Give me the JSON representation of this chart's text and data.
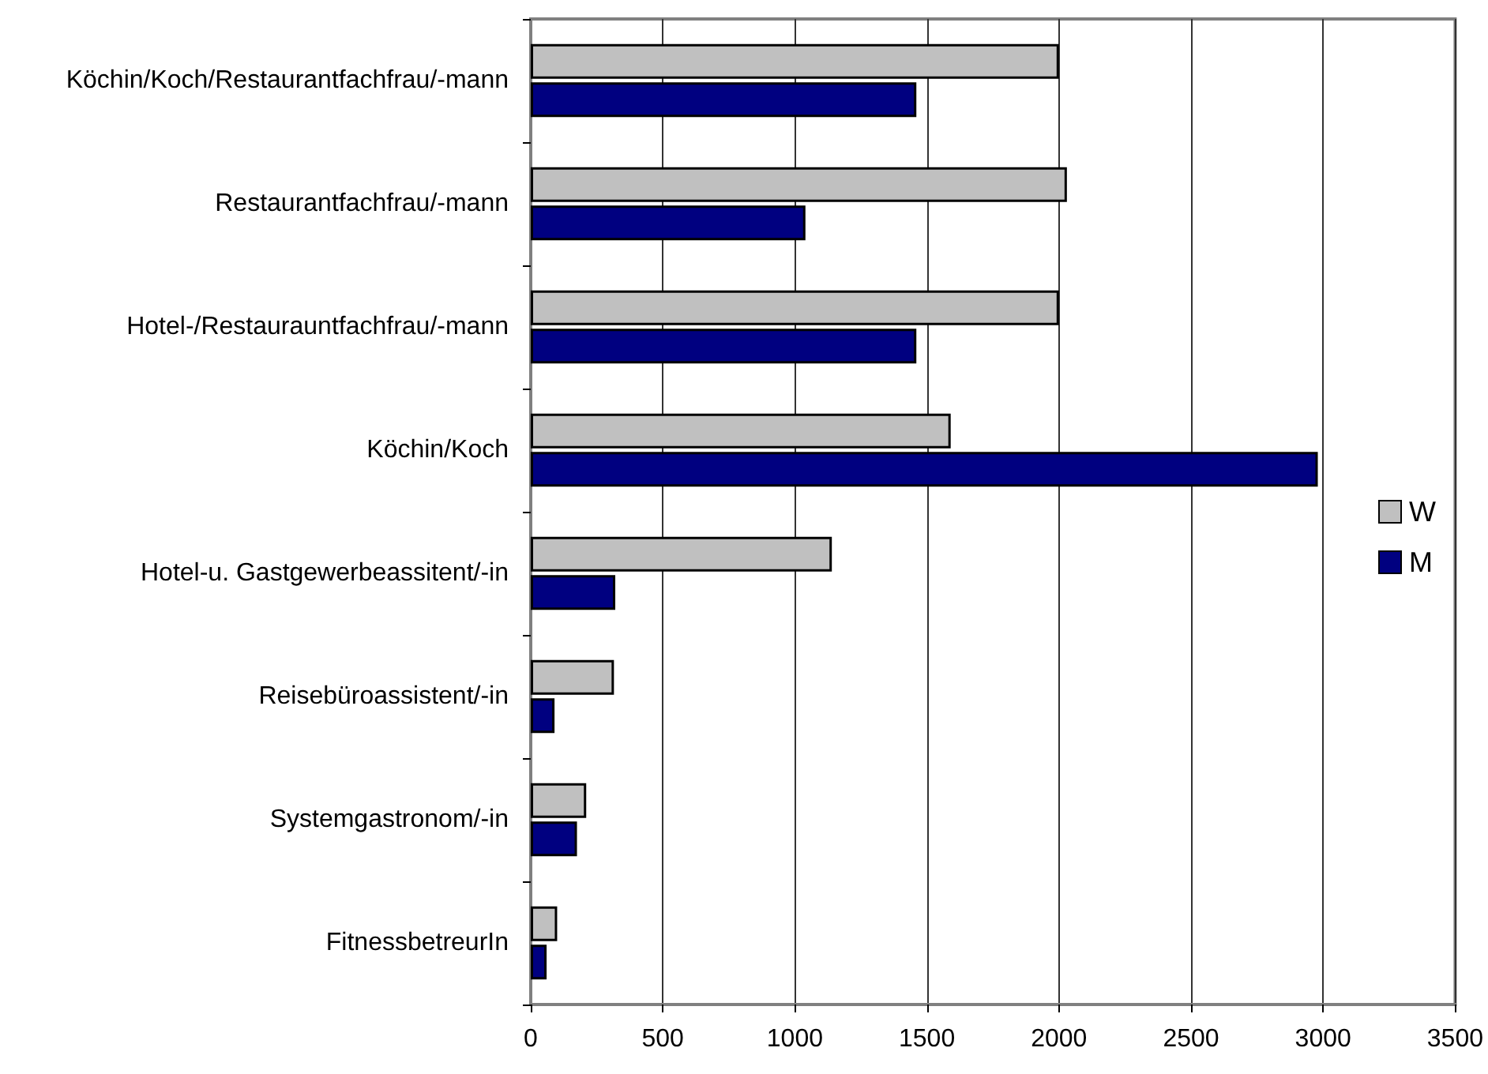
{
  "chart_data": {
    "type": "bar",
    "orientation": "horizontal",
    "categories": [
      "Köchin/Koch/Restaurantfachfrau/-mann",
      "Restaurantfachfrau/-mann",
      "Hotel-/Restaurauntfachfrau/-mann",
      "Köchin/Koch",
      "Hotel-u. Gastgewerbeassitent/-in",
      "Reisebüroassistent/-in",
      "Systemgastronom/-in",
      "FitnessbetreurIn"
    ],
    "series": [
      {
        "name": "W",
        "color": "#c0c0c0",
        "values": [
          2000,
          2030,
          2000,
          1590,
          1140,
          315,
          210,
          100
        ]
      },
      {
        "name": "M",
        "color": "#000080",
        "values": [
          1460,
          1040,
          1460,
          2980,
          320,
          90,
          175,
          60
        ]
      }
    ],
    "xlim": [
      0,
      3500
    ],
    "xticks": [
      0,
      500,
      1000,
      1500,
      2000,
      2500,
      3000,
      3500
    ],
    "grid": "x",
    "legend": "right"
  }
}
